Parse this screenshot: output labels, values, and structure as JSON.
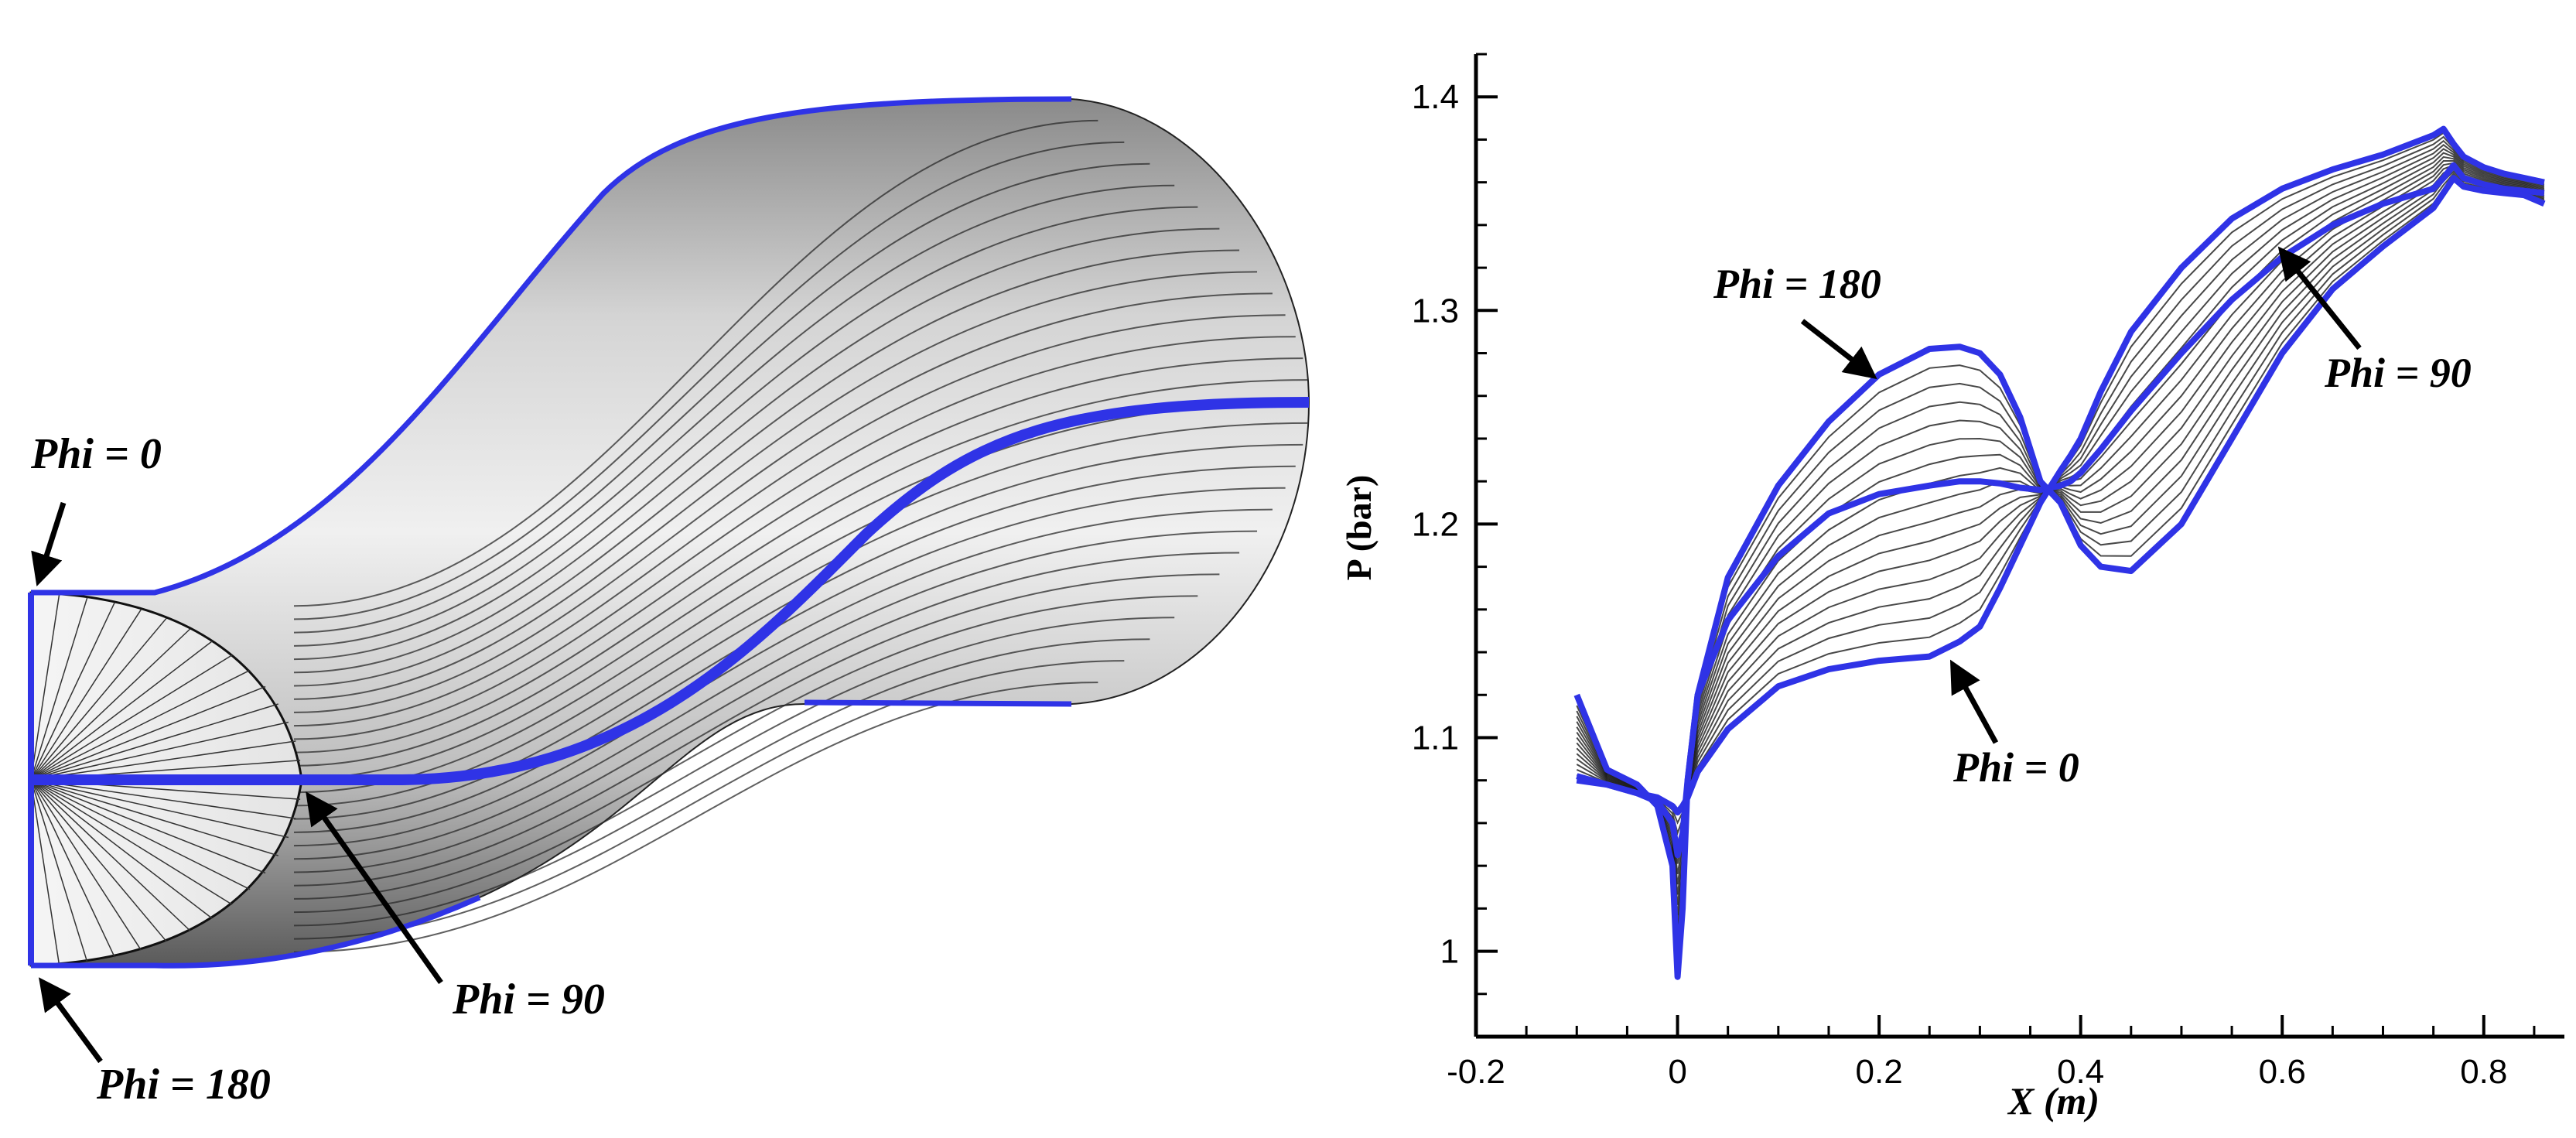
{
  "colors": {
    "highlight": "#2f33e6",
    "mesh_line": "#1a1a1a",
    "axis": "#000000",
    "arrow": "#000000"
  },
  "duct": {
    "labels": {
      "phi0": "Phi = 0",
      "phi90": "Phi = 90",
      "phi180": "Phi = 180"
    }
  },
  "chart_data": {
    "type": "line",
    "xlabel": "X (m)",
    "ylabel": "P (bar)",
    "xlim": [
      -0.2,
      0.88
    ],
    "ylim": [
      0.96,
      1.42
    ],
    "x_ticks": [
      "-0.2",
      "0",
      "0.2",
      "0.4",
      "0.6",
      "0.8"
    ],
    "y_ticks": [
      "1",
      "1.1",
      "1.2",
      "1.3",
      "1.4"
    ],
    "grid": false,
    "annotations": [
      "Phi = 180",
      "Phi = 90",
      "Phi = 0"
    ],
    "series": [
      {
        "x": [
          -0.1,
          -0.07,
          -0.04,
          -0.02,
          -0.005,
          0.0,
          0.005,
          0.01,
          0.02,
          0.05,
          0.1,
          0.15,
          0.2,
          0.25,
          0.28,
          0.3,
          0.32,
          0.34,
          0.36,
          0.38,
          0.39,
          0.4,
          0.42,
          0.45,
          0.5,
          0.55,
          0.6,
          0.65,
          0.7,
          0.75,
          0.76,
          0.77,
          0.78,
          0.8,
          0.82,
          0.84,
          0.86
        ],
        "values": [
          1.08,
          1.078,
          1.074,
          1.072,
          1.068,
          1.065,
          1.068,
          1.072,
          1.084,
          1.104,
          1.124,
          1.132,
          1.136,
          1.138,
          1.145,
          1.152,
          1.17,
          1.19,
          1.21,
          1.225,
          1.232,
          1.24,
          1.262,
          1.29,
          1.32,
          1.343,
          1.357,
          1.366,
          1.373,
          1.382,
          1.385,
          1.378,
          1.372,
          1.367,
          1.364,
          1.362,
          1.36
        ]
      },
      {
        "x": [
          -0.1,
          -0.07,
          -0.04,
          -0.02,
          -0.005,
          0.0,
          0.005,
          0.01,
          0.02,
          0.05,
          0.1,
          0.15,
          0.2,
          0.25,
          0.28,
          0.3,
          0.32,
          0.34,
          0.36,
          0.38,
          0.39,
          0.4,
          0.42,
          0.45,
          0.5,
          0.55,
          0.6,
          0.65,
          0.7,
          0.75,
          0.76,
          0.77,
          0.78,
          0.8,
          0.82,
          0.84,
          0.86
        ],
        "values": [
          1.082,
          1.078,
          1.074,
          1.07,
          1.06,
          1.045,
          1.055,
          1.08,
          1.12,
          1.155,
          1.185,
          1.205,
          1.214,
          1.218,
          1.22,
          1.22,
          1.219,
          1.217,
          1.216,
          1.218,
          1.22,
          1.224,
          1.235,
          1.253,
          1.28,
          1.305,
          1.325,
          1.34,
          1.35,
          1.357,
          1.362,
          1.368,
          1.362,
          1.359,
          1.357,
          1.356,
          1.355
        ]
      },
      {
        "x": [
          -0.1,
          -0.07,
          -0.04,
          -0.02,
          -0.005,
          0.0,
          0.005,
          0.01,
          0.02,
          0.05,
          0.1,
          0.15,
          0.2,
          0.25,
          0.28,
          0.3,
          0.32,
          0.34,
          0.36,
          0.38,
          0.39,
          0.4,
          0.42,
          0.45,
          0.5,
          0.55,
          0.6,
          0.65,
          0.7,
          0.75,
          0.76,
          0.77,
          0.78,
          0.8,
          0.82,
          0.84,
          0.86
        ],
        "values": [
          1.12,
          1.085,
          1.078,
          1.068,
          1.04,
          0.988,
          1.02,
          1.08,
          1.12,
          1.175,
          1.218,
          1.248,
          1.27,
          1.282,
          1.283,
          1.28,
          1.27,
          1.25,
          1.22,
          1.21,
          1.2,
          1.19,
          1.18,
          1.178,
          1.2,
          1.24,
          1.28,
          1.31,
          1.33,
          1.348,
          1.355,
          1.362,
          1.358,
          1.356,
          1.355,
          1.354,
          1.35
        ]
      }
    ]
  }
}
